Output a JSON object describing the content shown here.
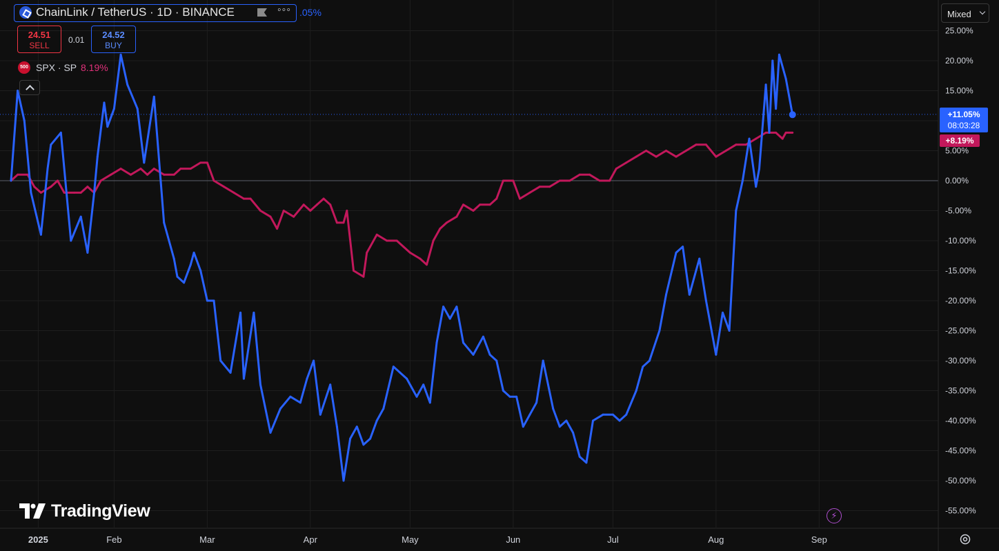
{
  "header": {
    "symbol_title": "ChainLink / TetherUS · 1D · BINANCE",
    "change_pct": ".05%",
    "sell_price": "24.51",
    "sell_label": "SELL",
    "spread": "0.01",
    "buy_price": "24.52",
    "buy_label": "BUY",
    "spx_badge": "500",
    "spx_label": "SPX · SP",
    "spx_value": "8.19%",
    "scale_mode": "Mixed"
  },
  "price_badges": {
    "link_pct": "+11.05%",
    "countdown": "08:03:28",
    "spx_pct": "+8.19%"
  },
  "branding": {
    "logo_text": "TradingView"
  },
  "colors": {
    "background": "#0f0f0f",
    "link_line": "#2962ff",
    "spx_line": "#c2185b",
    "grid": "#1e1e1e"
  },
  "chart_data": {
    "type": "line",
    "title": "ChainLink / TetherUS · 1D · BINANCE",
    "x_tick_labels": [
      "2025",
      "Feb",
      "Mar",
      "Apr",
      "May",
      "Jun",
      "Jul",
      "Aug",
      "Sep"
    ],
    "y_tick_labels": [
      "25.00%",
      "20.00%",
      "15.00%",
      "10.00%",
      "5.00%",
      "0.00%",
      "-5.00%",
      "-10.00%",
      "-15.00%",
      "-20.00%",
      "-25.00%",
      "-30.00%",
      "-35.00%",
      "-40.00%",
      "-45.00%",
      "-50.00%",
      "-55.00%"
    ],
    "y_unit": "%",
    "ylim": [
      -57,
      26
    ],
    "grid": true,
    "series": [
      {
        "name": "ChainLink / TetherUS",
        "color": "#2962ff",
        "points": [
          [
            "2025-01-01",
            0
          ],
          [
            "2025-01-03",
            15
          ],
          [
            "2025-01-05",
            10
          ],
          [
            "2025-01-07",
            -2
          ],
          [
            "2025-01-10",
            -9
          ],
          [
            "2025-01-12",
            2
          ],
          [
            "2025-01-13",
            6
          ],
          [
            "2025-01-16",
            8
          ],
          [
            "2025-01-19",
            -10
          ],
          [
            "2025-01-22",
            -6
          ],
          [
            "2025-01-24",
            -12
          ],
          [
            "2025-01-26",
            -2
          ],
          [
            "2025-01-27",
            4
          ],
          [
            "2025-01-29",
            13
          ],
          [
            "2025-01-30",
            9
          ],
          [
            "2025-02-01",
            12
          ],
          [
            "2025-02-03",
            21
          ],
          [
            "2025-02-05",
            16
          ],
          [
            "2025-02-08",
            12
          ],
          [
            "2025-02-10",
            3
          ],
          [
            "2025-02-13",
            14
          ],
          [
            "2025-02-16",
            -7
          ],
          [
            "2025-02-19",
            -13
          ],
          [
            "2025-02-20",
            -16
          ],
          [
            "2025-02-22",
            -17
          ],
          [
            "2025-02-24",
            -14
          ],
          [
            "2025-02-25",
            -12
          ],
          [
            "2025-02-27",
            -15
          ],
          [
            "2025-03-01",
            -20
          ],
          [
            "2025-03-03",
            -20
          ],
          [
            "2025-03-05",
            -30
          ],
          [
            "2025-03-08",
            -32
          ],
          [
            "2025-03-11",
            -22
          ],
          [
            "2025-03-12",
            -33
          ],
          [
            "2025-03-15",
            -22
          ],
          [
            "2025-03-17",
            -34
          ],
          [
            "2025-03-20",
            -42
          ],
          [
            "2025-03-23",
            -38
          ],
          [
            "2025-03-26",
            -36
          ],
          [
            "2025-03-29",
            -37
          ],
          [
            "2025-03-31",
            -33
          ],
          [
            "2025-04-02",
            -30
          ],
          [
            "2025-04-04",
            -39
          ],
          [
            "2025-04-07",
            -34
          ],
          [
            "2025-04-09",
            -41
          ],
          [
            "2025-04-11",
            -50
          ],
          [
            "2025-04-13",
            -43
          ],
          [
            "2025-04-15",
            -41
          ],
          [
            "2025-04-17",
            -44
          ],
          [
            "2025-04-19",
            -43
          ],
          [
            "2025-04-21",
            -40
          ],
          [
            "2025-04-23",
            -38
          ],
          [
            "2025-04-26",
            -31
          ],
          [
            "2025-04-28",
            -32
          ],
          [
            "2025-04-30",
            -33
          ],
          [
            "2025-05-03",
            -36
          ],
          [
            "2025-05-05",
            -34
          ],
          [
            "2025-05-07",
            -37
          ],
          [
            "2025-05-09",
            -27
          ],
          [
            "2025-05-11",
            -21
          ],
          [
            "2025-05-13",
            -23
          ],
          [
            "2025-05-15",
            -21
          ],
          [
            "2025-05-17",
            -27
          ],
          [
            "2025-05-20",
            -29
          ],
          [
            "2025-05-23",
            -26
          ],
          [
            "2025-05-25",
            -29
          ],
          [
            "2025-05-27",
            -30
          ],
          [
            "2025-05-29",
            -35
          ],
          [
            "2025-05-31",
            -36
          ],
          [
            "2025-06-02",
            -36
          ],
          [
            "2025-06-04",
            -41
          ],
          [
            "2025-06-06",
            -39
          ],
          [
            "2025-06-08",
            -37
          ],
          [
            "2025-06-10",
            -30
          ],
          [
            "2025-06-13",
            -38
          ],
          [
            "2025-06-15",
            -41
          ],
          [
            "2025-06-17",
            -40
          ],
          [
            "2025-06-19",
            -42
          ],
          [
            "2025-06-21",
            -46
          ],
          [
            "2025-06-23",
            -47
          ],
          [
            "2025-06-25",
            -40
          ],
          [
            "2025-06-28",
            -39
          ],
          [
            "2025-07-01",
            -39
          ],
          [
            "2025-07-03",
            -40
          ],
          [
            "2025-07-05",
            -39
          ],
          [
            "2025-07-08",
            -35
          ],
          [
            "2025-07-10",
            -31
          ],
          [
            "2025-07-12",
            -30
          ],
          [
            "2025-07-15",
            -25
          ],
          [
            "2025-07-17",
            -19
          ],
          [
            "2025-07-20",
            -12
          ],
          [
            "2025-07-22",
            -11
          ],
          [
            "2025-07-24",
            -19
          ],
          [
            "2025-07-27",
            -13
          ],
          [
            "2025-07-29",
            -20
          ],
          [
            "2025-07-31",
            -26
          ],
          [
            "2025-08-01",
            -29
          ],
          [
            "2025-08-03",
            -22
          ],
          [
            "2025-08-05",
            -25
          ],
          [
            "2025-08-07",
            -5
          ],
          [
            "2025-08-09",
            0
          ],
          [
            "2025-08-11",
            7
          ],
          [
            "2025-08-13",
            -1
          ],
          [
            "2025-08-14",
            2
          ],
          [
            "2025-08-16",
            16
          ],
          [
            "2025-08-17",
            8
          ],
          [
            "2025-08-18",
            20
          ],
          [
            "2025-08-19",
            12
          ],
          [
            "2025-08-20",
            21
          ],
          [
            "2025-08-22",
            17
          ],
          [
            "2025-08-24",
            11
          ]
        ]
      },
      {
        "name": "SPX · SP",
        "color": "#c2185b",
        "points": [
          [
            "2025-01-01",
            0
          ],
          [
            "2025-01-03",
            1
          ],
          [
            "2025-01-06",
            1
          ],
          [
            "2025-01-08",
            -1
          ],
          [
            "2025-01-10",
            -2
          ],
          [
            "2025-01-13",
            -1
          ],
          [
            "2025-01-15",
            0
          ],
          [
            "2025-01-17",
            -2
          ],
          [
            "2025-01-20",
            -2
          ],
          [
            "2025-01-22",
            -2
          ],
          [
            "2025-01-24",
            -1
          ],
          [
            "2025-01-26",
            -2
          ],
          [
            "2025-01-28",
            0
          ],
          [
            "2025-01-31",
            1
          ],
          [
            "2025-02-03",
            2
          ],
          [
            "2025-02-06",
            1
          ],
          [
            "2025-02-09",
            2
          ],
          [
            "2025-02-11",
            1
          ],
          [
            "2025-02-13",
            2
          ],
          [
            "2025-02-16",
            1
          ],
          [
            "2025-02-19",
            1
          ],
          [
            "2025-02-21",
            2
          ],
          [
            "2025-02-24",
            2
          ],
          [
            "2025-02-27",
            3
          ],
          [
            "2025-03-01",
            3
          ],
          [
            "2025-03-03",
            0
          ],
          [
            "2025-03-06",
            -1
          ],
          [
            "2025-03-09",
            -2
          ],
          [
            "2025-03-12",
            -3
          ],
          [
            "2025-03-14",
            -3
          ],
          [
            "2025-03-17",
            -5
          ],
          [
            "2025-03-20",
            -6
          ],
          [
            "2025-03-22",
            -8
          ],
          [
            "2025-03-24",
            -5
          ],
          [
            "2025-03-27",
            -6
          ],
          [
            "2025-03-30",
            -4
          ],
          [
            "2025-04-01",
            -5
          ],
          [
            "2025-04-03",
            -4
          ],
          [
            "2025-04-05",
            -3
          ],
          [
            "2025-04-07",
            -4
          ],
          [
            "2025-04-09",
            -7
          ],
          [
            "2025-04-11",
            -7
          ],
          [
            "2025-04-12",
            -5
          ],
          [
            "2025-04-14",
            -15
          ],
          [
            "2025-04-17",
            -16
          ],
          [
            "2025-04-18",
            -12
          ],
          [
            "2025-04-19",
            -11
          ],
          [
            "2025-04-21",
            -9
          ],
          [
            "2025-04-24",
            -10
          ],
          [
            "2025-04-27",
            -10
          ],
          [
            "2025-04-29",
            -11
          ],
          [
            "2025-05-01",
            -12
          ],
          [
            "2025-05-04",
            -13
          ],
          [
            "2025-05-06",
            -14
          ],
          [
            "2025-05-08",
            -10
          ],
          [
            "2025-05-10",
            -8
          ],
          [
            "2025-05-12",
            -7
          ],
          [
            "2025-05-15",
            -6
          ],
          [
            "2025-05-17",
            -4
          ],
          [
            "2025-05-20",
            -5
          ],
          [
            "2025-05-22",
            -4
          ],
          [
            "2025-05-25",
            -4
          ],
          [
            "2025-05-27",
            -3
          ],
          [
            "2025-05-29",
            0
          ],
          [
            "2025-06-01",
            0
          ],
          [
            "2025-06-03",
            -3
          ],
          [
            "2025-06-06",
            -2
          ],
          [
            "2025-06-09",
            -1
          ],
          [
            "2025-06-12",
            -1
          ],
          [
            "2025-06-15",
            0
          ],
          [
            "2025-06-18",
            0
          ],
          [
            "2025-06-21",
            1
          ],
          [
            "2025-06-24",
            1
          ],
          [
            "2025-06-27",
            0
          ],
          [
            "2025-06-30",
            0
          ],
          [
            "2025-07-02",
            2
          ],
          [
            "2025-07-05",
            3
          ],
          [
            "2025-07-08",
            4
          ],
          [
            "2025-07-11",
            5
          ],
          [
            "2025-07-14",
            4
          ],
          [
            "2025-07-17",
            5
          ],
          [
            "2025-07-20",
            4
          ],
          [
            "2025-07-23",
            5
          ],
          [
            "2025-07-26",
            6
          ],
          [
            "2025-07-29",
            6
          ],
          [
            "2025-08-01",
            4
          ],
          [
            "2025-08-04",
            5
          ],
          [
            "2025-08-07",
            6
          ],
          [
            "2025-08-10",
            6
          ],
          [
            "2025-08-13",
            7
          ],
          [
            "2025-08-16",
            8
          ],
          [
            "2025-08-19",
            8
          ],
          [
            "2025-08-21",
            7
          ],
          [
            "2025-08-22",
            8
          ],
          [
            "2025-08-24",
            8
          ]
        ]
      }
    ],
    "last_value_line_pct": 11.05
  }
}
